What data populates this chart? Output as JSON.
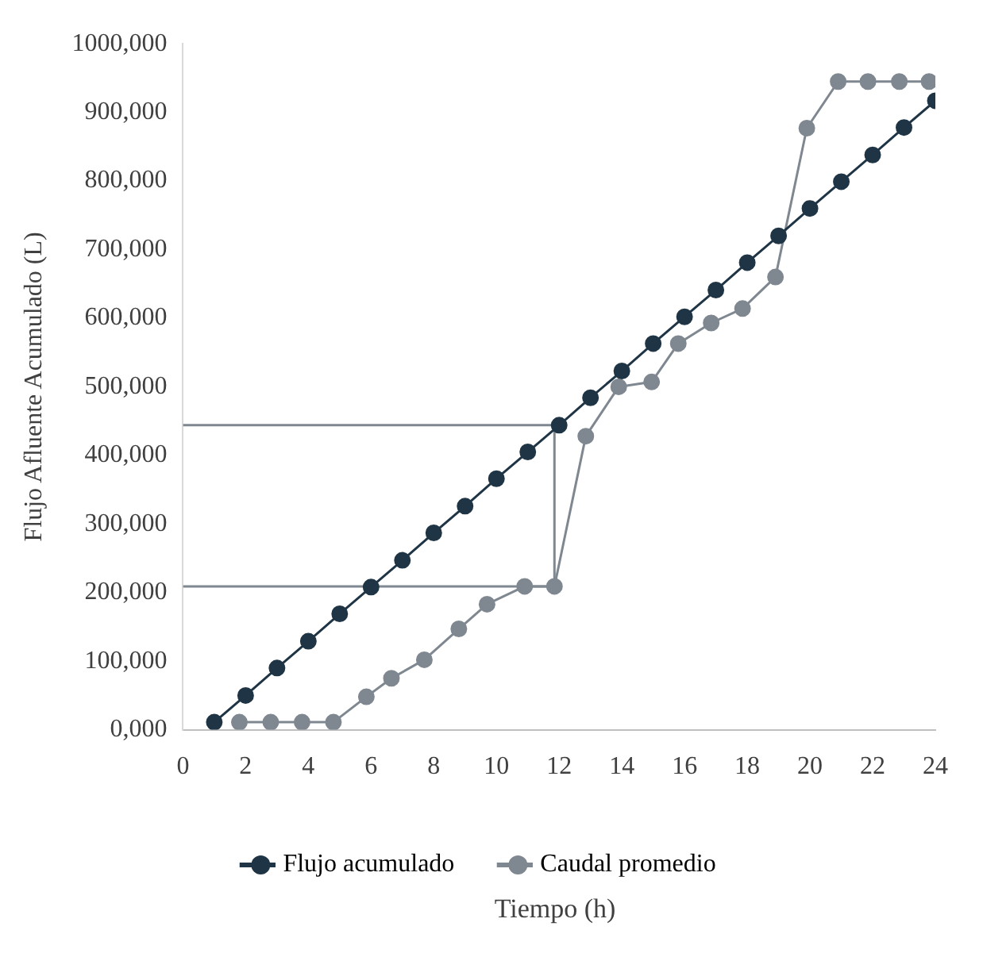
{
  "chart_data": {
    "type": "line",
    "xlabel": "Tiempo (h)",
    "ylabel": "Flujo Afluente Acumulado (L)",
    "xlim": [
      0,
      24
    ],
    "xticks": [
      0,
      2,
      4,
      6,
      8,
      10,
      12,
      14,
      16,
      18,
      20,
      22,
      24
    ],
    "ylim": [
      0,
      1000000
    ],
    "yticks": [
      {
        "value": 0,
        "label": "0,000"
      },
      {
        "value": 100000,
        "label": "100,000"
      },
      {
        "value": 200000,
        "label": "200,000"
      },
      {
        "value": 300000,
        "label": "300,000"
      },
      {
        "value": 400000,
        "label": "400,000"
      },
      {
        "value": 500000,
        "label": "500,000"
      },
      {
        "value": 600000,
        "label": "600,000"
      },
      {
        "value": 700000,
        "label": "700,000"
      },
      {
        "value": 800000,
        "label": "800,000"
      },
      {
        "value": 900000,
        "label": "900,000"
      },
      {
        "value": 1000000,
        "label": "1000,000"
      }
    ],
    "grid": false,
    "legend": "bottom",
    "marker": "circle",
    "line_style": "solid",
    "series": [
      {
        "name": "Flujo acumulado",
        "color": "#1f3545",
        "x": [
          1,
          2,
          3,
          4,
          5,
          6,
          7,
          8,
          9,
          10,
          11,
          12,
          13,
          14,
          15,
          16,
          17,
          18,
          19,
          20,
          21,
          22,
          23,
          24
        ],
        "values": [
          11000,
          50000,
          90000,
          129000,
          169000,
          208000,
          247000,
          287000,
          326000,
          366000,
          405000,
          444000,
          484000,
          523000,
          563000,
          602000,
          641000,
          681000,
          720000,
          760000,
          799000,
          838000,
          878000,
          917000
        ]
      },
      {
        "name": "Caudal promedio",
        "color": "#7f8790",
        "x": [
          1.8,
          2.8,
          3.8,
          4.8,
          5.85,
          6.65,
          7.7,
          8.8,
          9.7,
          10.9,
          11.85,
          12.85,
          13.9,
          14.95,
          15.8,
          16.85,
          17.85,
          18.9,
          19.9,
          20.9,
          21.85,
          22.85,
          23.8
        ],
        "values": [
          11000,
          11000,
          11000,
          11000,
          48000,
          75000,
          102000,
          147000,
          183000,
          209000,
          209000,
          428000,
          500000,
          507000,
          563000,
          593000,
          614000,
          660000,
          877000,
          945000,
          945000,
          945000,
          945000
        ]
      },
      {
        "color": "#7f8790",
        "marker": "none",
        "x": [
          0,
          11.85,
          11.85,
          0
        ],
        "values": [
          444000,
          444000,
          209000,
          209000
        ]
      }
    ]
  }
}
